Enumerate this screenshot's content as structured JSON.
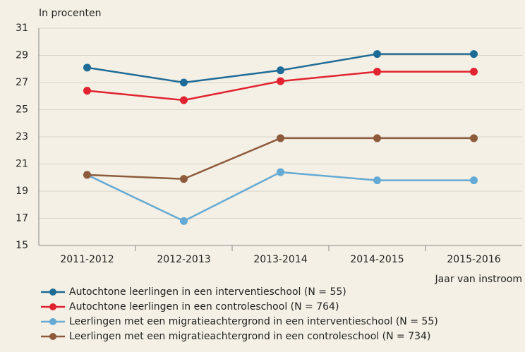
{
  "chart_data": {
    "type": "line",
    "y_label": "In procenten",
    "x_label": "Jaar van instroom",
    "categories": [
      "2011-2012",
      "2012-2013",
      "2013-2014",
      "2014-2015",
      "2015-2016"
    ],
    "series": [
      {
        "name": "Autochtone leerlingen in een interventieschool (N = 55)",
        "color": "#1f6b97",
        "values": [
          28.1,
          27.0,
          27.9,
          29.1,
          29.1
        ]
      },
      {
        "name": "Autochtone leerlingen in een controleschool (N = 764)",
        "color": "#e1222f",
        "values": [
          26.4,
          25.7,
          27.1,
          27.8,
          27.8
        ]
      },
      {
        "name": "Leerlingen met een migratieachtergrond in een interventieschool (N = 55)",
        "color": "#64aad4",
        "values": [
          20.2,
          16.8,
          20.4,
          19.8,
          19.8
        ]
      },
      {
        "name": "Leerlingen met een migratieachtergrond in een controleschool (N = 734)",
        "color": "#8d5b3b",
        "values": [
          20.2,
          19.9,
          22.9,
          22.9,
          22.9
        ]
      }
    ],
    "ylim": [
      15,
      31
    ],
    "yticks": [
      15,
      17,
      19,
      21,
      23,
      25,
      27,
      29,
      31
    ],
    "grid": true
  }
}
